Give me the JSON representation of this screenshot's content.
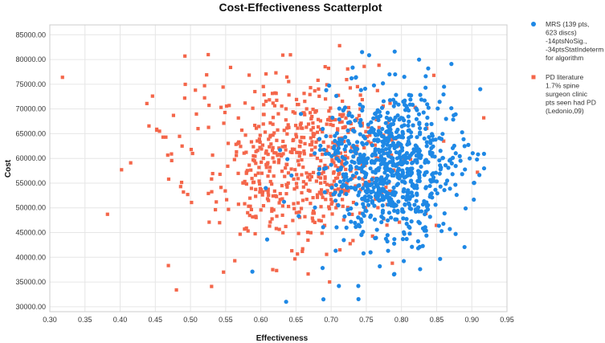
{
  "chart_data": {
    "type": "scatter",
    "title": "Cost-Effectiveness Scatterplot",
    "xlabel": "Effectiveness",
    "ylabel": "Cost",
    "xlim": [
      0.3,
      0.95
    ],
    "ylim": [
      29000,
      87000
    ],
    "x_ticks": [
      0.3,
      0.35,
      0.4,
      0.45,
      0.5,
      0.55,
      0.6,
      0.65,
      0.7,
      0.75,
      0.8,
      0.85,
      0.9,
      0.95
    ],
    "x_tick_labels": [
      "0.30",
      "0.35",
      "0.40",
      "0.45",
      "0.50",
      "0.55",
      "0.60",
      "0.65",
      "0.70",
      "0.75",
      "0.80",
      "0.85",
      "0.90",
      "0.95"
    ],
    "y_ticks": [
      30000,
      35000,
      40000,
      45000,
      50000,
      55000,
      60000,
      65000,
      70000,
      75000,
      80000,
      85000
    ],
    "y_tick_labels": [
      "30000.00",
      "35000.00",
      "40000.00",
      "45000.00",
      "50000.00",
      "55000.00",
      "60000.00",
      "65000.00",
      "70000.00",
      "75000.00",
      "80000.00",
      "85000.00"
    ],
    "grid": true,
    "legend_position": "right",
    "series": [
      {
        "name": "MRS (139 pts, 623 discs) -14ptsNoSig., -34ptsStatIndeterm for algorithm",
        "legend_lines": [
          "MRS (139 pts,",
          "623 discs)",
          "-14ptsNoSig.,",
          "-34ptsStatIndeterm",
          "for algorithm"
        ],
        "marker": "circle",
        "color": "#1e88e5",
        "distribution": {
          "count": 800,
          "x_mean": 0.785,
          "x_sd": 0.048,
          "y_mean": 58500,
          "y_sd": 7500,
          "seed": 7
        },
        "points": [
          [
            0.636,
            31000
          ],
          [
            0.689,
            31500
          ],
          [
            0.711,
            34200
          ],
          [
            0.588,
            37100
          ],
          [
            0.609,
            43600
          ],
          [
            0.826,
            42100
          ],
          [
            0.857,
            45300
          ],
          [
            0.871,
            79100
          ],
          [
            0.912,
            74000
          ],
          [
            0.897,
            60000
          ],
          [
            0.838,
            78200
          ],
          [
            0.804,
            76500
          ],
          [
            0.783,
            77000
          ],
          [
            0.791,
            77000
          ],
          [
            0.657,
            69000
          ],
          [
            0.607,
            54000
          ],
          [
            0.746,
            40800
          ],
          [
            0.756,
            41000
          ],
          [
            0.693,
            73800
          ],
          [
            0.729,
            76200
          ]
        ]
      },
      {
        "name": "PD literature 1.7% spine surgeon clinic pts seen had PD (Ledonio,09)",
        "legend_lines": [
          "PD literature",
          "1.7% spine",
          "surgeon clinic",
          "pts seen had PD",
          "(Ledonio,09)"
        ],
        "marker": "square",
        "color": "#f4664a",
        "distribution": {
          "count": 620,
          "x_mean": 0.655,
          "x_sd": 0.07,
          "y_mean": 59500,
          "y_sd": 8000,
          "seed": 13
        },
        "points": [
          [
            0.318,
            76400
          ],
          [
            0.382,
            48700
          ],
          [
            0.402,
            57700
          ],
          [
            0.415,
            59100
          ],
          [
            0.438,
            71100
          ],
          [
            0.446,
            72600
          ],
          [
            0.452,
            65700
          ],
          [
            0.456,
            65500
          ],
          [
            0.461,
            64300
          ],
          [
            0.465,
            64300
          ],
          [
            0.469,
            55800
          ],
          [
            0.473,
            60900
          ],
          [
            0.48,
            33400
          ],
          [
            0.486,
            54300
          ],
          [
            0.49,
            53200
          ],
          [
            0.496,
            52700
          ],
          [
            0.501,
            61800
          ],
          [
            0.503,
            61000
          ],
          [
            0.507,
            73800
          ],
          [
            0.52,
            74700
          ],
          [
            0.523,
            76900
          ],
          [
            0.53,
            34100
          ],
          [
            0.547,
            37000
          ],
          [
            0.557,
            78400
          ],
          [
            0.563,
            39300
          ],
          [
            0.617,
            37500
          ],
          [
            0.712,
            82800
          ],
          [
            0.747,
            78600
          ],
          [
            0.787,
            38800
          ],
          [
            0.797,
            47100
          ],
          [
            0.908,
            57200
          ],
          [
            0.917,
            68200
          ],
          [
            0.86,
            63500
          ],
          [
            0.846,
            76800
          ]
        ]
      }
    ]
  }
}
